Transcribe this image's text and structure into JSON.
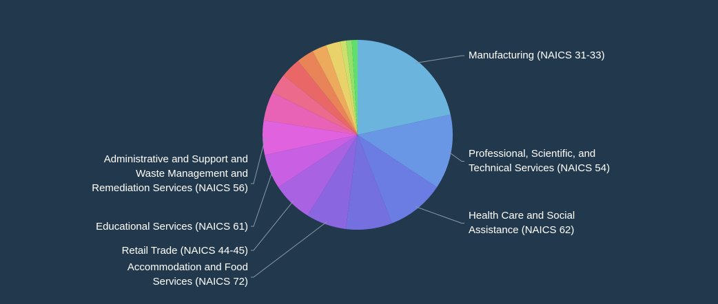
{
  "colors": {
    "background": "#22394d",
    "leader": "#8a99a8"
  },
  "chart_data": {
    "type": "pie",
    "start_angle_deg": 0,
    "direction": "clockwise",
    "slices": [
      {
        "label": "Manufacturing (NAICS 31-33)",
        "value": 22.0,
        "color": "#6ab4de"
      },
      {
        "label": "Professional, Scientific, and Technical Services (NAICS 54)",
        "value": 13.0,
        "color": "#6a96e6"
      },
      {
        "label": "Health Care and Social Assistance (NAICS 62)",
        "value": 10.0,
        "color": "#6b7de2"
      },
      {
        "label": "",
        "value": 8.0,
        "color": "#7470e0"
      },
      {
        "label": "Accommodation and Food Services (NAICS 72)",
        "value": 7.0,
        "color": "#8a66e0"
      },
      {
        "label": "Retail Trade (NAICS 44-45)",
        "value": 7.0,
        "color": "#a962e2"
      },
      {
        "label": "Educational Services (NAICS 61)",
        "value": 6.0,
        "color": "#c95fe2"
      },
      {
        "label": "Administrative and Support and Waste Management and Remediation Services (NAICS 56)",
        "value": 6.0,
        "color": "#e062de"
      },
      {
        "label": "",
        "value": 5.0,
        "color": "#e862b6"
      },
      {
        "label": "",
        "value": 3.5,
        "color": "#ec6a8c"
      },
      {
        "label": "",
        "value": 3.5,
        "color": "#e96767"
      },
      {
        "label": "",
        "value": 3.0,
        "color": "#e98458"
      },
      {
        "label": "",
        "value": 2.5,
        "color": "#edaa5c"
      },
      {
        "label": "",
        "value": 2.5,
        "color": "#e9d26a"
      },
      {
        "label": "",
        "value": 1.0,
        "color": "#cfe06a"
      },
      {
        "label": "",
        "value": 1.0,
        "color": "#94e06a"
      },
      {
        "label": "",
        "value": 1.0,
        "color": "#5fe06d"
      }
    ],
    "callouts": [
      {
        "slice": 0,
        "lines": [
          "Manufacturing (NAICS 31-33)"
        ],
        "side": "right"
      },
      {
        "slice": 1,
        "lines": [
          "Professional, Scientific, and",
          "Technical Services (NAICS 54)"
        ],
        "side": "right"
      },
      {
        "slice": 2,
        "lines": [
          "Health Care and Social",
          "Assistance (NAICS 62)"
        ],
        "side": "right"
      },
      {
        "slice": 7,
        "lines": [
          "Administrative and Support and",
          "Waste Management and",
          "Remediation Services (NAICS 56)"
        ],
        "side": "left"
      },
      {
        "slice": 6,
        "lines": [
          "Educational Services (NAICS 61)"
        ],
        "side": "left"
      },
      {
        "slice": 5,
        "lines": [
          "Retail Trade (NAICS 44-45)"
        ],
        "side": "left"
      },
      {
        "slice": 4,
        "lines": [
          "Accommodation and Food",
          "Services (NAICS 72)"
        ],
        "side": "left"
      }
    ]
  }
}
